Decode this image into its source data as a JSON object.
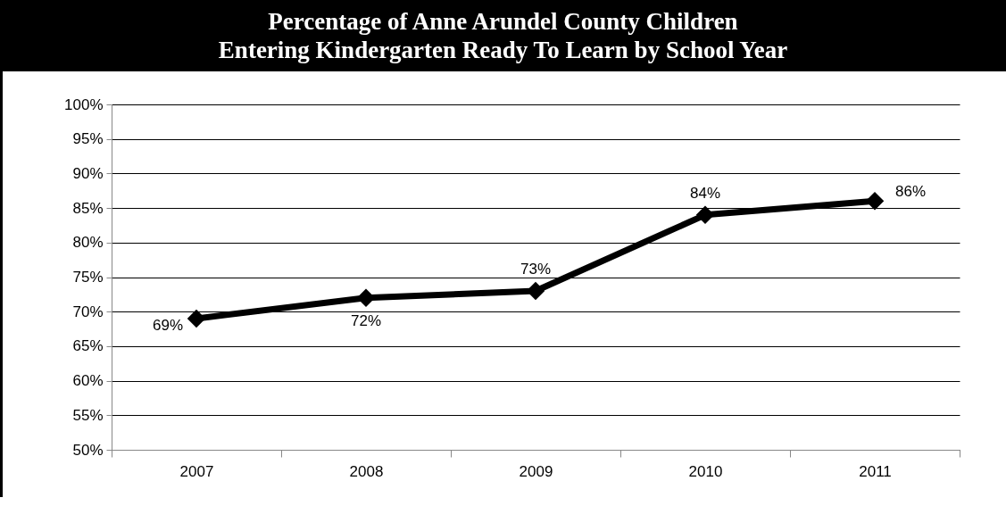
{
  "chart_data": {
    "type": "line",
    "title": "Percentage of Anne Arundel County Children\nEntering Kindergarten Ready To Learn by School Year",
    "categories": [
      "2007",
      "2008",
      "2009",
      "2010",
      "2011"
    ],
    "series": [
      {
        "color": "#000000",
        "values": [
          69,
          72,
          73,
          84,
          86
        ],
        "value_labels": [
          "69%",
          "72%",
          "73%",
          "84%",
          "86%"
        ]
      }
    ],
    "ylim": [
      50,
      100
    ],
    "yticks": [
      {
        "value": 50,
        "label": "50%"
      },
      {
        "value": 55,
        "label": "55%"
      },
      {
        "value": 60,
        "label": "60%"
      },
      {
        "value": 65,
        "label": "65%"
      },
      {
        "value": 70,
        "label": "70%"
      },
      {
        "value": 75,
        "label": "75%"
      },
      {
        "value": 80,
        "label": "80%"
      },
      {
        "value": 85,
        "label": "85%"
      },
      {
        "value": 90,
        "label": "90%"
      },
      {
        "value": 95,
        "label": "95%"
      },
      {
        "value": 100,
        "label": "100%"
      }
    ],
    "grid": "y",
    "marker": "diamond",
    "line_style": "solid"
  }
}
